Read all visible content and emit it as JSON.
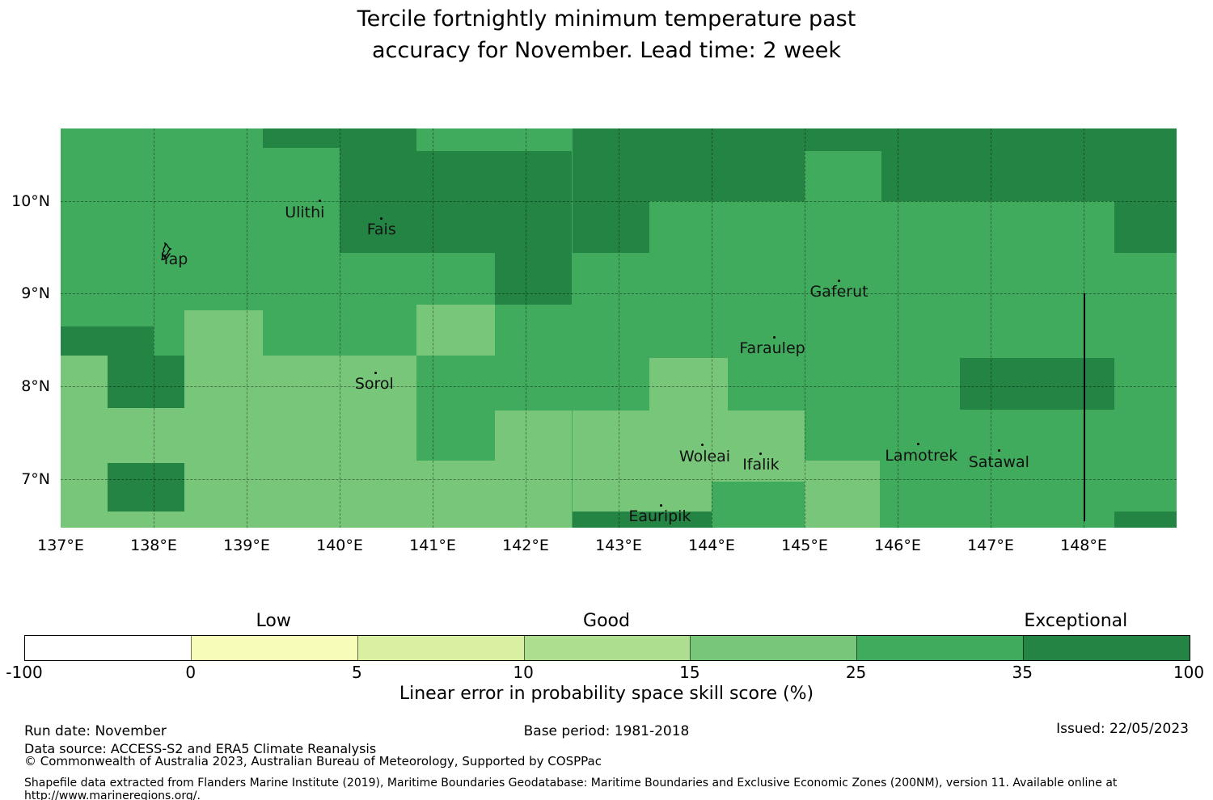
{
  "title": {
    "line1": "Tercile fortnightly minimum temperature past",
    "line2": "accuracy for November. Lead time: 2 week"
  },
  "chart_data": {
    "type": "heatmap",
    "title": "Tercile fortnightly minimum temperature past accuracy for November. Lead time: 2 week",
    "colorbar_label": "Linear error in probability space skill score (%)",
    "colorbar_ticks": [
      "-100",
      "0",
      "5",
      "10",
      "15",
      "25",
      "35",
      "100"
    ],
    "quality_labels": [
      {
        "label": "Low",
        "position": 0.214
      },
      {
        "label": "Good",
        "position": 0.5
      },
      {
        "label": "Exceptional",
        "position": 0.903
      }
    ],
    "bins": [
      {
        "range": "-100 to 0",
        "color": "#ffffff"
      },
      {
        "range": "0 to 5",
        "color": "#f7fcb9"
      },
      {
        "range": "5 to 10",
        "color": "#d9f0a3"
      },
      {
        "range": "10 to 15",
        "color": "#addd8e"
      },
      {
        "range": "15 to 25",
        "color": "#78c679"
      },
      {
        "range": "25 to 35",
        "color": "#41ab5d"
      },
      {
        "range": "35 to 100",
        "color": "#238443"
      }
    ],
    "extent": {
      "lon_min": 137.0,
      "lon_max": 149.0,
      "lat_min": 6.48,
      "lat_max": 10.78
    },
    "base_bin": "25 to 35",
    "grid_lons": [
      138,
      139,
      140,
      141,
      142,
      143,
      144,
      145,
      146,
      147,
      148
    ],
    "grid_lats": [
      7,
      8,
      9,
      10
    ],
    "x_ticks": [
      {
        "label": "137°E",
        "lon": 137
      },
      {
        "label": "138°E",
        "lon": 138
      },
      {
        "label": "139°E",
        "lon": 139
      },
      {
        "label": "140°E",
        "lon": 140
      },
      {
        "label": "141°E",
        "lon": 141
      },
      {
        "label": "142°E",
        "lon": 142
      },
      {
        "label": "143°E",
        "lon": 143
      },
      {
        "label": "144°E",
        "lon": 144
      },
      {
        "label": "145°E",
        "lon": 145
      },
      {
        "label": "146°E",
        "lon": 146
      },
      {
        "label": "147°E",
        "lon": 147
      },
      {
        "label": "148°E",
        "lon": 148
      }
    ],
    "y_ticks": [
      {
        "label": "10°N",
        "lat": 10
      },
      {
        "label": "9°N",
        "lat": 9
      },
      {
        "label": "8°N",
        "lat": 8
      },
      {
        "label": "7°N",
        "lat": 7
      }
    ],
    "regions": [
      {
        "bin": "35 to 100",
        "lon_min": 139.17,
        "lon_max": 140.0,
        "lat_min": 10.57,
        "lat_max": 10.78
      },
      {
        "bin": "35 to 100",
        "lon_min": 140.0,
        "lon_max": 140.83,
        "lat_min": 9.44,
        "lat_max": 10.78
      },
      {
        "bin": "35 to 100",
        "lon_min": 140.83,
        "lon_max": 141.67,
        "lat_min": 9.44,
        "lat_max": 10.54
      },
      {
        "bin": "35 to 100",
        "lon_min": 141.67,
        "lon_max": 142.5,
        "lat_min": 8.88,
        "lat_max": 10.54
      },
      {
        "bin": "35 to 100",
        "lon_min": 142.5,
        "lon_max": 143.33,
        "lat_min": 9.44,
        "lat_max": 10.78
      },
      {
        "bin": "35 to 100",
        "lon_min": 143.33,
        "lon_max": 145.0,
        "lat_min": 10.0,
        "lat_max": 10.78
      },
      {
        "bin": "35 to 100",
        "lon_min": 145.0,
        "lon_max": 145.83,
        "lat_min": 10.54,
        "lat_max": 10.78
      },
      {
        "bin": "35 to 100",
        "lon_min": 145.83,
        "lon_max": 149.0,
        "lat_min": 10.0,
        "lat_max": 10.78
      },
      {
        "bin": "35 to 100",
        "lon_min": 148.33,
        "lon_max": 149.0,
        "lat_min": 9.44,
        "lat_max": 10.0
      },
      {
        "bin": "35 to 100",
        "lon_min": 137.0,
        "lon_max": 138.0,
        "lat_min": 8.33,
        "lat_max": 8.65
      },
      {
        "bin": "35 to 100",
        "lon_min": 137.5,
        "lon_max": 138.33,
        "lat_min": 7.77,
        "lat_max": 8.33
      },
      {
        "bin": "35 to 100",
        "lon_min": 137.5,
        "lon_max": 138.33,
        "lat_min": 6.65,
        "lat_max": 7.18
      },
      {
        "bin": "35 to 100",
        "lon_min": 146.67,
        "lon_max": 148.33,
        "lat_min": 7.75,
        "lat_max": 8.31
      },
      {
        "bin": "35 to 100",
        "lon_min": 142.5,
        "lon_max": 144.0,
        "lat_min": 6.48,
        "lat_max": 6.65
      },
      {
        "bin": "35 to 100",
        "lon_min": 148.33,
        "lon_max": 149.0,
        "lat_min": 6.48,
        "lat_max": 6.65
      },
      {
        "bin": "15 to 25",
        "lon_min": 138.33,
        "lon_max": 139.17,
        "lat_min": 6.48,
        "lat_max": 8.82
      },
      {
        "bin": "15 to 25",
        "lon_min": 137.0,
        "lon_max": 137.5,
        "lat_min": 7.77,
        "lat_max": 8.33
      },
      {
        "bin": "15 to 25",
        "lon_min": 137.0,
        "lon_max": 138.33,
        "lat_min": 7.18,
        "lat_max": 7.77
      },
      {
        "bin": "15 to 25",
        "lon_min": 137.0,
        "lon_max": 137.5,
        "lat_min": 6.65,
        "lat_max": 7.18
      },
      {
        "bin": "15 to 25",
        "lon_min": 137.0,
        "lon_max": 138.33,
        "lat_min": 6.48,
        "lat_max": 6.65
      },
      {
        "bin": "15 to 25",
        "lon_min": 139.17,
        "lon_max": 140.83,
        "lat_min": 6.48,
        "lat_max": 8.33
      },
      {
        "bin": "15 to 25",
        "lon_min": 140.83,
        "lon_max": 141.67,
        "lat_min": 8.33,
        "lat_max": 8.88
      },
      {
        "bin": "15 to 25",
        "lon_min": 140.83,
        "lon_max": 141.67,
        "lat_min": 6.48,
        "lat_max": 7.2
      },
      {
        "bin": "15 to 25",
        "lon_min": 141.67,
        "lon_max": 142.5,
        "lat_min": 6.48,
        "lat_max": 7.74
      },
      {
        "bin": "15 to 25",
        "lon_min": 142.5,
        "lon_max": 144.0,
        "lat_min": 6.65,
        "lat_max": 7.74
      },
      {
        "bin": "15 to 25",
        "lon_min": 144.0,
        "lon_max": 145.0,
        "lat_min": 6.98,
        "lat_max": 7.74
      },
      {
        "bin": "15 to 25",
        "lon_min": 143.33,
        "lon_max": 144.17,
        "lat_min": 7.74,
        "lat_max": 8.31
      },
      {
        "bin": "15 to 25",
        "lon_min": 145.0,
        "lon_max": 145.81,
        "lat_min": 6.48,
        "lat_max": 7.2
      }
    ],
    "islands": [
      {
        "name": "Yap",
        "lon": 138.13,
        "lat": 9.49,
        "label_dx": 11,
        "shape": true
      },
      {
        "name": "Ulithi",
        "lon": 139.79,
        "lat": 10.0,
        "label_dx": -19
      },
      {
        "name": "Fais",
        "lon": 140.45,
        "lat": 9.81,
        "label_dx": 0
      },
      {
        "name": "Sorol",
        "lon": 140.39,
        "lat": 8.15,
        "label_dx": -2
      },
      {
        "name": "Gaferut",
        "lon": 145.37,
        "lat": 9.14,
        "label_dx": 0
      },
      {
        "name": "Faraulep",
        "lon": 144.67,
        "lat": 8.53,
        "label_dx": -2
      },
      {
        "name": "Woleai",
        "lon": 143.9,
        "lat": 7.37,
        "label_dx": 3
      },
      {
        "name": "Ifalik",
        "lon": 144.53,
        "lat": 7.28,
        "label_dx": 0
      },
      {
        "name": "Eauripik",
        "lon": 143.46,
        "lat": 6.72,
        "label_dx": -2
      },
      {
        "name": "Lamotrek",
        "lon": 146.22,
        "lat": 7.38,
        "label_dx": 4
      },
      {
        "name": "Satawal",
        "lon": 147.09,
        "lat": 7.31,
        "label_dx": 0
      }
    ],
    "eez_line": {
      "lon": 148.0,
      "lat_top": 9.0,
      "lat_bottom": 6.55
    }
  },
  "footer": {
    "run_date": "Run date: November",
    "base_period": "Base period: 1981-2018",
    "issued": "Issued: 22/05/2023",
    "data_source": "Data source: ACCESS-S2 and ERA5 Climate Reanalysis",
    "copyright": "© Commonwealth of Australia 2023, Australian Bureau of Meteorology, Supported by COSPPac",
    "shapefile": "Shapefile data extracted from Flanders Marine Institute (2019), Maritime Boundaries Geodatabase: Maritime Boundaries and Exclusive Economic Zones (200NM), version 11. Available online at http://www.marineregions.org/."
  }
}
